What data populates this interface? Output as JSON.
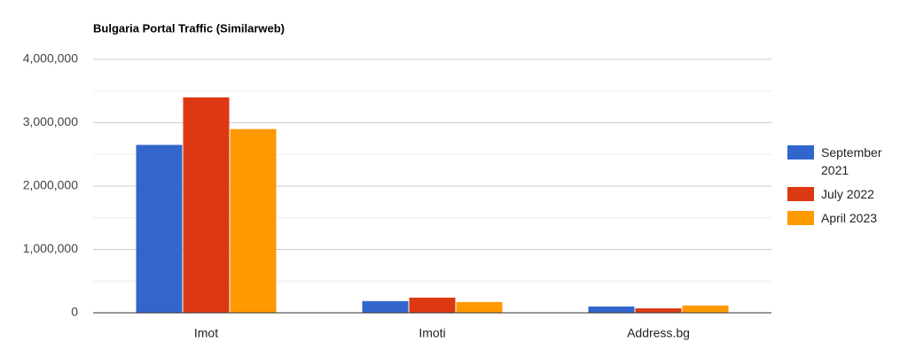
{
  "chart_data": {
    "type": "bar",
    "title": "Bulgaria Portal Traffic (Similarweb)",
    "categories": [
      "Imot",
      "Imoti",
      "Address.bg"
    ],
    "series": [
      {
        "name": "September 2021",
        "color": "#3366cc",
        "values": [
          2650000,
          185000,
          100000
        ]
      },
      {
        "name": "July 2022",
        "color": "#dc3912",
        "values": [
          3400000,
          240000,
          70000
        ]
      },
      {
        "name": "April 2023",
        "color": "#ff9900",
        "values": [
          2900000,
          170000,
          115000
        ]
      }
    ],
    "ylim": [
      0,
      4000000
    ],
    "yticks": [
      {
        "value": 0,
        "label": "0"
      },
      {
        "value": 1000000,
        "label": "1,000,000"
      },
      {
        "value": 2000000,
        "label": "2,000,000"
      },
      {
        "value": 3000000,
        "label": "3,000,000"
      },
      {
        "value": 4000000,
        "label": "4,000,000"
      }
    ],
    "minor_yticks": [
      500000,
      1500000,
      2500000,
      3500000
    ],
    "grid": true,
    "legend": "right"
  }
}
